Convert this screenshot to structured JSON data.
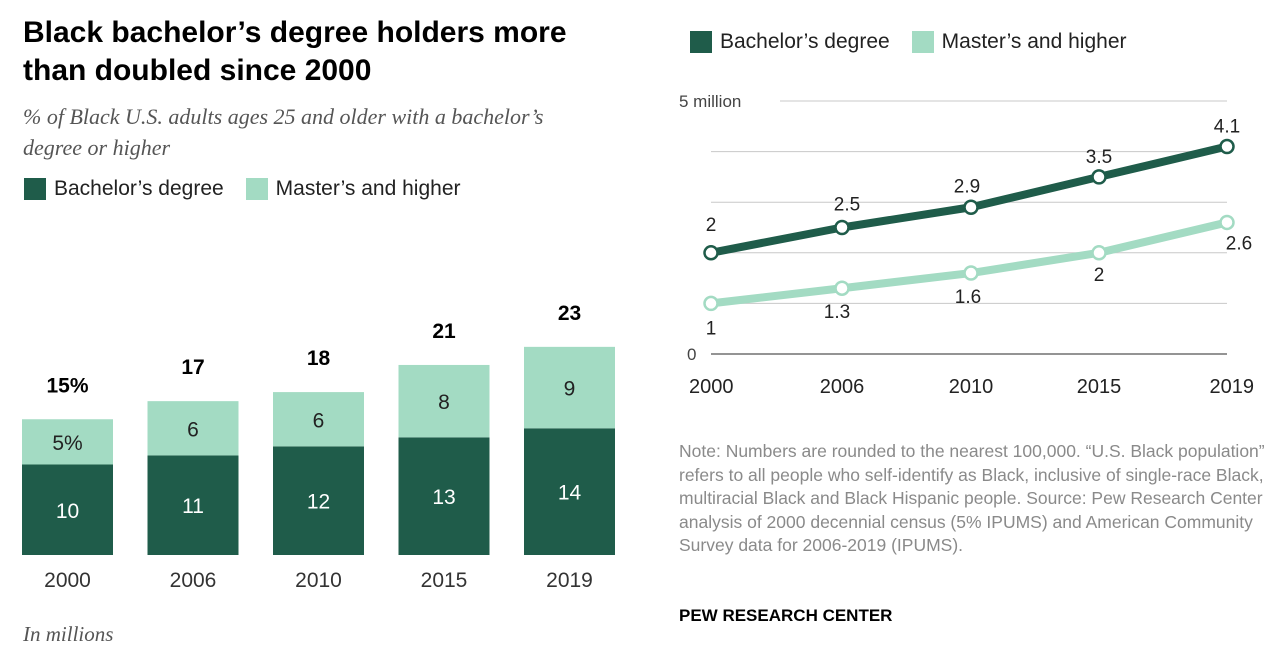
{
  "header": {
    "title": "Black bachelor’s degree holders more than doubled since 2000",
    "subtitle": "% of Black U.S. adults ages 25 and older with a bachelor’s degree or higher"
  },
  "legend": {
    "bachelor": "Bachelor’s degree",
    "masters": "Master’s and higher"
  },
  "colors": {
    "bachelor": "#1f5c4a",
    "masters": "#a3dbc3"
  },
  "chart_data": [
    {
      "type": "bar",
      "stacked": true,
      "units": "percent",
      "categories": [
        "2000",
        "2006",
        "2010",
        "2015",
        "2019"
      ],
      "series": [
        {
          "name": "Bachelor’s degree",
          "values": [
            10,
            11,
            12,
            13,
            14
          ],
          "labels": [
            "10",
            "11",
            "12",
            "13",
            "14"
          ]
        },
        {
          "name": "Master’s and higher",
          "values": [
            5,
            6,
            6,
            8,
            9
          ],
          "labels": [
            "5%",
            "6",
            "6",
            "8",
            "9"
          ]
        }
      ],
      "totals": [
        15,
        17,
        18,
        21,
        23
      ],
      "total_labels": [
        "15%",
        "17",
        "18",
        "21",
        "23"
      ],
      "ylim": [
        0,
        25
      ]
    },
    {
      "type": "line",
      "units": "millions",
      "x": [
        "2000",
        "2006",
        "2010",
        "2015",
        "2019"
      ],
      "series": [
        {
          "name": "Bachelor’s degree",
          "values": [
            2,
            2.5,
            2.9,
            3.5,
            4.1
          ],
          "labels": [
            "2",
            "2.5",
            "2.9",
            "3.5",
            "4.1"
          ]
        },
        {
          "name": "Master’s and higher",
          "values": [
            1,
            1.3,
            1.6,
            2,
            2.6
          ],
          "labels": [
            "1",
            "1.3",
            "1.6",
            "2",
            "2.6"
          ]
        }
      ],
      "ylim": [
        0,
        5
      ],
      "y_tick_labels": {
        "top": "5 million",
        "bottom": "0"
      }
    }
  ],
  "footer": {
    "in_millions": "In millions",
    "note": "Note: Numbers are rounded to the nearest 100,000. “U.S. Black population” refers to all people who self-identify as Black, inclusive of single-race Black, multiracial Black and Black Hispanic people. Source: Pew Research Center analysis of 2000 decennial census (5% IPUMS) and American Community Survey data for 2006-2019 (IPUMS).",
    "org": "PEW RESEARCH CENTER"
  }
}
